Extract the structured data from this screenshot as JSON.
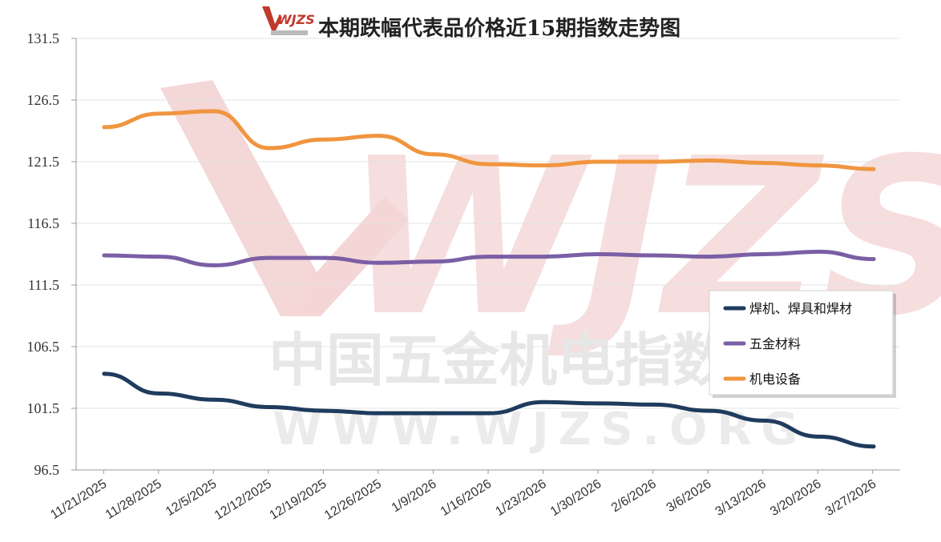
{
  "chart_data": {
    "type": "line",
    "title": "本期跌幅代表品价格近15期指数走势图",
    "categories": [
      "11/21/2025",
      "11/28/2025",
      "12/5/2025",
      "12/12/2025",
      "12/19/2025",
      "12/26/2025",
      "1/9/2026",
      "1/16/2026",
      "1/23/2026",
      "1/30/2026",
      "2/6/2026",
      "3/6/2026",
      "3/13/2026",
      "3/20/2026",
      "3/27/2026"
    ],
    "ylim": [
      96.5,
      131.5
    ],
    "yticks": [
      "131.5",
      "126.5",
      "121.5",
      "116.5",
      "111.5",
      "106.5",
      "101.5",
      "96.5"
    ],
    "grid": true,
    "legend_position": "right",
    "series": [
      {
        "name": "焊机、焊具和焊材",
        "color": "#1f3b5e",
        "values": [
          104.3,
          102.7,
          102.2,
          101.6,
          101.3,
          101.1,
          101.1,
          101.1,
          102.0,
          101.9,
          101.8,
          101.3,
          100.5,
          99.2,
          98.4
        ]
      },
      {
        "name": "五金材料",
        "color": "#7b5fa5",
        "values": [
          113.9,
          113.8,
          113.1,
          113.7,
          113.7,
          113.3,
          113.4,
          113.8,
          113.8,
          114.0,
          113.9,
          113.8,
          114.0,
          114.2,
          113.6
        ]
      },
      {
        "name": "机电设备",
        "color": "#f0953f",
        "values": [
          124.3,
          125.4,
          125.6,
          122.6,
          123.3,
          123.6,
          122.1,
          121.3,
          121.2,
          121.5,
          121.5,
          121.6,
          121.4,
          121.2,
          120.9
        ]
      }
    ]
  },
  "watermark": {
    "logo_text": "WJZS",
    "chinese_text": "中国五金机电指数",
    "url_text": "WWW.WJZS.ORG",
    "color": "#e2a7a7"
  }
}
